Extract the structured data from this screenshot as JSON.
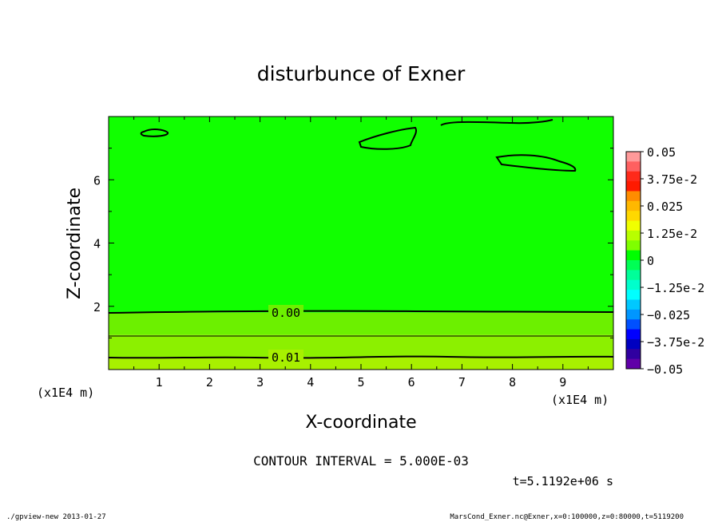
{
  "chart_data": {
    "type": "heatmap",
    "title": "disturbunce of Exner",
    "xlabel": "X-coordinate",
    "ylabel": "Z-coordinate",
    "x_unit": "(x1E4 m)",
    "y_unit": "(x1E4 m)",
    "xlim": [
      0,
      10
    ],
    "ylim": [
      0,
      8
    ],
    "x_ticks": [
      {
        "v": 1,
        "label": "1"
      },
      {
        "v": 2,
        "label": "2"
      },
      {
        "v": 3,
        "label": "3"
      },
      {
        "v": 4,
        "label": "4"
      },
      {
        "v": 5,
        "label": "5"
      },
      {
        "v": 6,
        "label": "6"
      },
      {
        "v": 7,
        "label": "7"
      },
      {
        "v": 8,
        "label": "8"
      },
      {
        "v": 9,
        "label": "9"
      }
    ],
    "y_ticks": [
      {
        "v": 2,
        "label": "2"
      },
      {
        "v": 4,
        "label": "4"
      },
      {
        "v": 6,
        "label": "6"
      }
    ],
    "contour_interval_text": "CONTOUR INTERVAL = 5.000E-03",
    "time_text": "t=5.1192e+06 s",
    "contour_labels": [
      {
        "label": "0.00",
        "x": 3.5,
        "z": 1.8
      },
      {
        "label": "0.01",
        "x": 3.5,
        "z": 0.4
      }
    ],
    "colorbar": {
      "labels": [
        "0.05",
        "3.75e-2",
        "0.025",
        "1.25e-2",
        "0",
        "−1.25e-2",
        "−0.025",
        "−3.75e-2",
        "−0.05"
      ],
      "colors_top_to_bottom": [
        "#ff9a9a",
        "#ff6060",
        "#ff2a1a",
        "#ff1a00",
        "#ff8c00",
        "#ffb800",
        "#ffd800",
        "#f0ff00",
        "#b8ff00",
        "#7fff00",
        "#00ff00",
        "#00ff55",
        "#00ff99",
        "#00ffcc",
        "#00ffff",
        "#00c8ff",
        "#0096ff",
        "#0050ff",
        "#0000ff",
        "#0000c0",
        "#3000a0",
        "#6000a8"
      ]
    },
    "field_bands": [
      {
        "z0": 0,
        "z1": 0.4,
        "color": "#a8f000"
      },
      {
        "z0": 0.4,
        "z1": 1.1,
        "color": "#8cf000"
      },
      {
        "z0": 1.1,
        "z1": 1.8,
        "color": "#6cf000"
      },
      {
        "z0": 1.8,
        "z1": 8,
        "color": "#11ff00"
      }
    ]
  },
  "footer": {
    "left": "./gpview-new  2013-01-27",
    "right": "MarsCond_Exner.nc@Exner,x=0:100000,z=0:80000,t=5119200"
  }
}
